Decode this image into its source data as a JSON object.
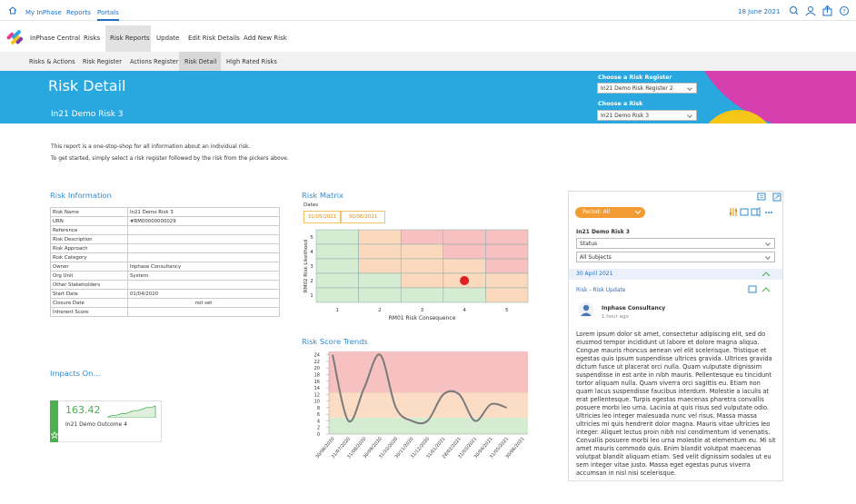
{
  "top_nav": {
    "items": [
      "My InPhase",
      "Reports",
      "Portals"
    ],
    "date": "18 June 2021"
  },
  "app_nav": {
    "brand": "InPhase Central",
    "items": [
      "Risks",
      "Risk Reports",
      "Update",
      "Edit Risk Details",
      "Add New Risk"
    ]
  },
  "sub_nav": {
    "items": [
      "Risks & Actions",
      "Risk Register",
      "Actions Register",
      "Risk Detail",
      "High Rated Risks"
    ]
  },
  "banner": {
    "title": "Risk Detail",
    "subtitle": "In21 Demo Risk 3",
    "register_label": "Choose a Risk Register",
    "register_value": "In21 Demo Risk Register 2",
    "risk_label": "Choose a Risk",
    "risk_value": "In21 Demo Risk 3"
  },
  "intro": [
    "This report is a one-stop-shop for all information about an individual risk.",
    "To get started, simply select a risk register followed by the risk from the pickers above."
  ],
  "risk_information": {
    "title": "Risk Information",
    "rows": [
      [
        "Risk Name",
        "In21 Demo Risk 3"
      ],
      [
        "URN",
        "#RM00000000029"
      ],
      [
        "Reference"
      ],
      [
        "Risk Description"
      ],
      [
        "Risk Approach"
      ],
      [
        "Risk Category"
      ],
      [
        "Owner",
        "Inphase Consultancy"
      ],
      [
        "Org Unit",
        "System"
      ],
      [
        "Other Stakeholders"
      ],
      [
        "Start Date",
        "01/04/2020"
      ],
      [
        "Closure Date",
        "not set"
      ],
      [
        "Inherent Score"
      ]
    ]
  },
  "risk_matrix": {
    "title": "Risk Matrix",
    "dates_label": "Dates",
    "dates": [
      "31/05/2021",
      "30/06/2021"
    ],
    "x_label": "RM01 Risk Consequence",
    "y_label": "RM02 Risk Likelihood",
    "xticks": [
      1,
      2,
      3,
      4,
      5
    ],
    "yticks": [
      1,
      2,
      3,
      4,
      5
    ],
    "cell_colors": [
      [
        "#d5ecd2",
        "#fbd9bd",
        "#f7c1c1",
        "#f7c1c1",
        "#f7c1c1"
      ],
      [
        "#d5ecd2",
        "#fbd9bd",
        "#fbd9bd",
        "#f7c1c1",
        "#f7c1c1"
      ],
      [
        "#d5ecd2",
        "#fbd9bd",
        "#fbd9bd",
        "#fbd9bd",
        "#f7c1c1"
      ],
      [
        "#d5ecd2",
        "#d5ecd2",
        "#fbd9bd",
        "#fbd9bd",
        "#fbd9bd"
      ],
      [
        "#d5ecd2",
        "#d5ecd2",
        "#d5ecd2",
        "#d5ecd2",
        "#fbd9bd"
      ]
    ],
    "point": {
      "consequence": 4,
      "likelihood": 2
    },
    "point_color": "#e02020"
  },
  "risk_trends": {
    "title": "Risk Score Trends",
    "x": [
      "30/06/2020",
      "31/07/2020",
      "31/08/2020",
      "30/09/2020",
      "31/10/2020",
      "30/11/2020",
      "31/12/2020",
      "31/01/2021",
      "28/02/2021",
      "31/03/2021",
      "30/04/2021",
      "31/05/2021",
      "30/06/2021"
    ],
    "values": [
      24,
      4,
      14,
      24,
      8,
      4,
      4,
      12,
      12,
      4,
      9,
      8,
      null
    ],
    "color": "#7a7a7a",
    "ylim": [
      0,
      25
    ],
    "yticks": [
      0,
      2,
      4,
      6,
      8,
      10,
      12,
      14,
      16,
      18,
      20,
      22,
      24
    ],
    "bands": [
      {
        "from": 0,
        "to": 5,
        "color": "#d5ecd2"
      },
      {
        "from": 5,
        "to": 12.5,
        "color": "#fbdcc4"
      },
      {
        "from": 12.5,
        "to": 25,
        "color": "#f7c1c1"
      }
    ]
  },
  "impacts": {
    "title": "Impacts On...",
    "value": "163.42",
    "label": "In21 Demo Outcome 4",
    "sparkline": [
      1,
      2,
      2,
      3,
      3,
      4,
      5,
      5,
      6,
      7,
      7,
      8
    ],
    "color": "#4caf50"
  },
  "activity": {
    "period": "Period: All",
    "risk": "In21 Demo Risk 3",
    "status": "Status",
    "subjects": "All Subjects",
    "date": "30 April 2021",
    "update_title": "Risk - Risk Update",
    "author": "Inphase Consultancy",
    "time": "1 hour ago",
    "text": "Lorem ipsum dolor sit amet, consectetur adipiscing elit, sed do eiusmod tempor incididunt ut labore et dolore magna aliqua. Congue mauris rhoncus aenean vel elit scelerisque. Tristique et egestas quis ipsum suspendisse ultrices gravida. Ultrices gravida dictum fusce ut placerat orci nulla. Quam vulputate dignissim suspendisse in est ante in nibh mauris. Pellentesque eu tincidunt tortor aliquam nulla. Quam viverra orci sagittis eu. Etiam non quam lacus suspendisse faucibus interdum. Molestie a iaculis at erat pellentesque. Turpis egestas maecenas pharetra convallis posuere morbi leo urna. Lacinia at quis risus sed vulputate odio. Ultricies leo integer malesuada nunc vel risus. Massa massa ultricies mi quis hendrerit dolor magna. Mauris vitae ultricies leo integer. Aliquet lectus proin nibh nisl condimentum id venenatis. Convallis posuere morbi leo urna molestie at elementum eu. Mi sit amet mauris commodo quis. Enim blandit volutpat maecenas volutpat blandit aliquam etiam. Sed velit dignissim sodales ut eu sem integer vitae justo. Massa eget egestas purus viverra accumsan in nisl nisi scelerisque."
  }
}
